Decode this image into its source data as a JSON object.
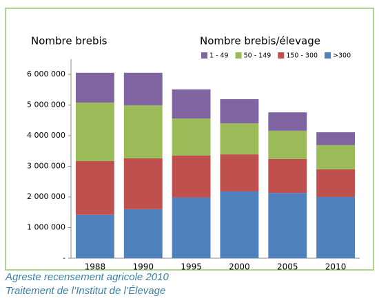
{
  "chart_data": {
    "type": "stacked_bar",
    "title": "Nombre brebis",
    "legend_title": "Nombre brebis/élevage",
    "categories": [
      "1988",
      "1990",
      "1995",
      "2000",
      "2005",
      "2010"
    ],
    "series": [
      {
        "name": "1 - 49",
        "color": "#8064a2",
        "values": [
          970000,
          1060000,
          950000,
          790000,
          600000,
          420000
        ]
      },
      {
        "name": "50 - 149",
        "color": "#9bbb59",
        "values": [
          1910000,
          1730000,
          1210000,
          1010000,
          920000,
          790000
        ]
      },
      {
        "name": "150 - 300",
        "color": "#c0504d",
        "values": [
          1750000,
          1660000,
          1370000,
          1210000,
          1110000,
          900000
        ]
      },
      {
        "name": ">300",
        "color": "#4f81bd",
        "values": [
          1420000,
          1600000,
          1980000,
          2180000,
          2130000,
          2000000
        ]
      }
    ],
    "ylim": [
      0,
      6500000
    ],
    "yticks": [
      {
        "value": 0,
        "label": "-"
      },
      {
        "value": 1000000,
        "label": "1 000 000"
      },
      {
        "value": 2000000,
        "label": "2 000 000"
      },
      {
        "value": 3000000,
        "label": "3 000 000"
      },
      {
        "value": 4000000,
        "label": "4 000 000"
      },
      {
        "value": 5000000,
        "label": "5 000 000"
      },
      {
        "value": 6000000,
        "label": "6 000 000"
      }
    ],
    "source": [
      "Agreste recensement agricole 2010",
      "Traitement de l’Institut de l’Élevage"
    ]
  }
}
